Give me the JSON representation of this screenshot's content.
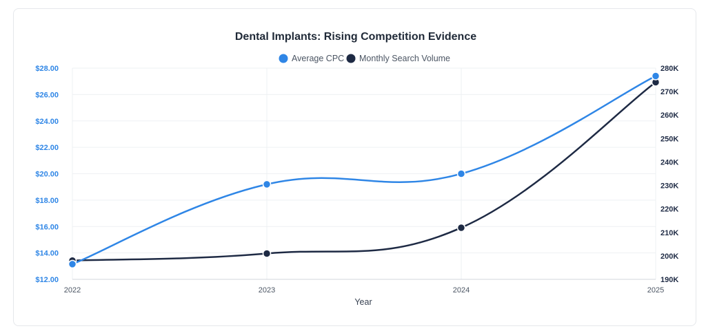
{
  "chart_data": {
    "type": "line",
    "title": "Dental Implants: Rising Competition Evidence",
    "xlabel": "Year",
    "categories": [
      "2022",
      "2023",
      "2024",
      "2025"
    ],
    "series": [
      {
        "name": "Average CPC",
        "axis": "left",
        "color": "#2f86e6",
        "values": [
          13.15,
          19.2,
          20.0,
          27.4
        ]
      },
      {
        "name": "Monthly Search Volume",
        "axis": "right",
        "color": "#1e2a44",
        "values": [
          198000,
          201000,
          212000,
          274000
        ]
      }
    ],
    "y_left": {
      "range": [
        12,
        28
      ],
      "ticks": [
        12,
        14,
        16,
        18,
        20,
        22,
        24,
        26,
        28
      ],
      "tick_labels": [
        "$12.00",
        "$14.00",
        "$16.00",
        "$18.00",
        "$20.00",
        "$22.00",
        "$24.00",
        "$26.00",
        "$28.00"
      ]
    },
    "y_right": {
      "range": [
        190000,
        280000
      ],
      "ticks": [
        190000,
        200000,
        210000,
        220000,
        230000,
        240000,
        250000,
        260000,
        270000,
        280000
      ],
      "tick_labels": [
        "190K",
        "200K",
        "210K",
        "220K",
        "230K",
        "240K",
        "250K",
        "260K",
        "270K",
        "280K"
      ]
    },
    "grid": true,
    "legend": "top-center"
  }
}
